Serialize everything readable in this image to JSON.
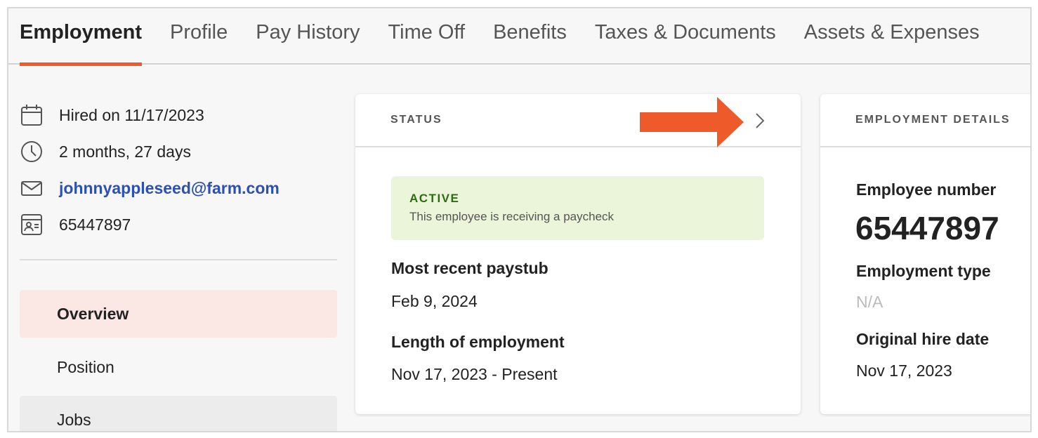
{
  "tabs": [
    "Employment",
    "Profile",
    "Pay History",
    "Time Off",
    "Benefits",
    "Taxes & Documents",
    "Assets & Expenses"
  ],
  "info": {
    "hired": "Hired on 11/17/2023",
    "tenure": "2 months, 27 days",
    "email": "johnnyappleseed@farm.com",
    "id": "65447897"
  },
  "nav": [
    "Overview",
    "Position",
    "Jobs"
  ],
  "status_card": {
    "title": "STATUS",
    "badge": "ACTIVE",
    "badge_text": "This employee is receiving a paycheck",
    "paystub_label": "Most recent paystub",
    "paystub_value": "Feb 9, 2024",
    "length_label": "Length of employment",
    "length_value": "Nov 17, 2023 - Present"
  },
  "details_card": {
    "title": "EMPLOYMENT DETAILS",
    "number_label": "Employee number",
    "number_value": "65447897",
    "type_label": "Employment type",
    "type_value": "N/A",
    "hire_label": "Original hire date",
    "hire_value": "Nov 17, 2023"
  },
  "colors": {
    "accent": "#ee5a2a",
    "link": "#2c50b4",
    "active_bg": "#eaf5d9",
    "active_text": "#2e6b12"
  }
}
